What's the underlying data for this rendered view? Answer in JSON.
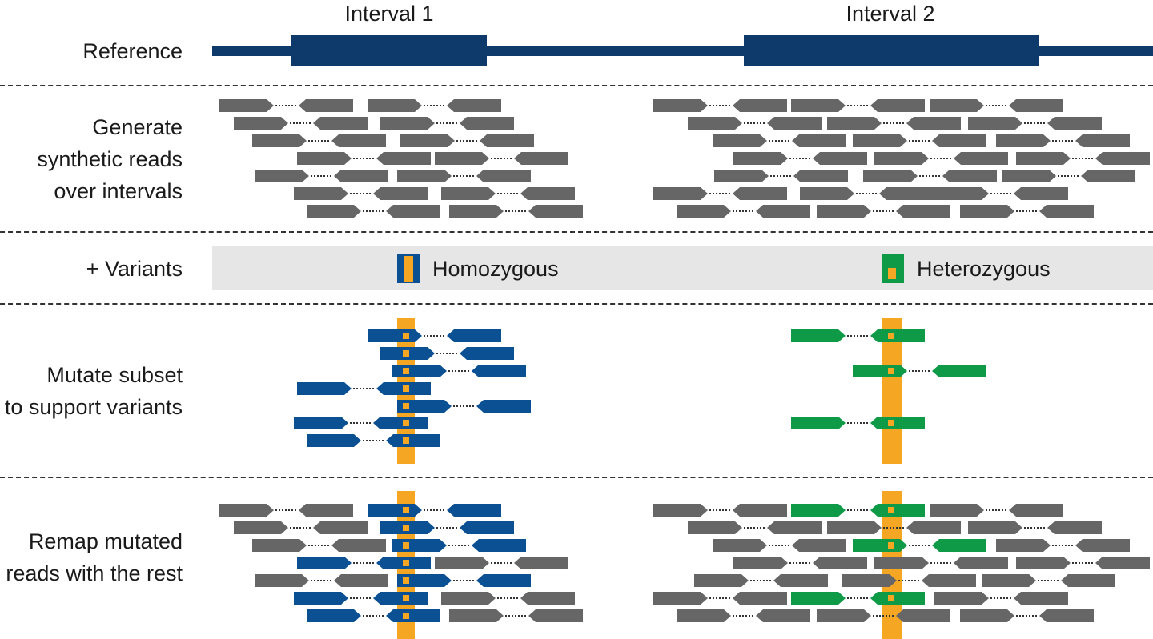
{
  "intervals": [
    "Interval 1",
    "Interval 2"
  ],
  "rows": {
    "reference": "Reference",
    "generate": "Generate\nsynthetic reads\nover intervals",
    "variants": "+ Variants",
    "mutate": "Mutate subset\nto support variants",
    "remap": "Remap mutated\nreads with the rest"
  },
  "legend": {
    "homozygous": "Homozygous",
    "heterozygous": "Heterozygous"
  },
  "colors": {
    "reference": "#0e3a6b",
    "read_gray": "#666666",
    "read_blue": "#0c5094",
    "read_green": "#0e9a46",
    "variant_orange": "#f5a623",
    "band": "#e6e6e6"
  },
  "icons": [
    "homozygous-variant-icon",
    "heterozygous-variant-icon"
  ]
}
